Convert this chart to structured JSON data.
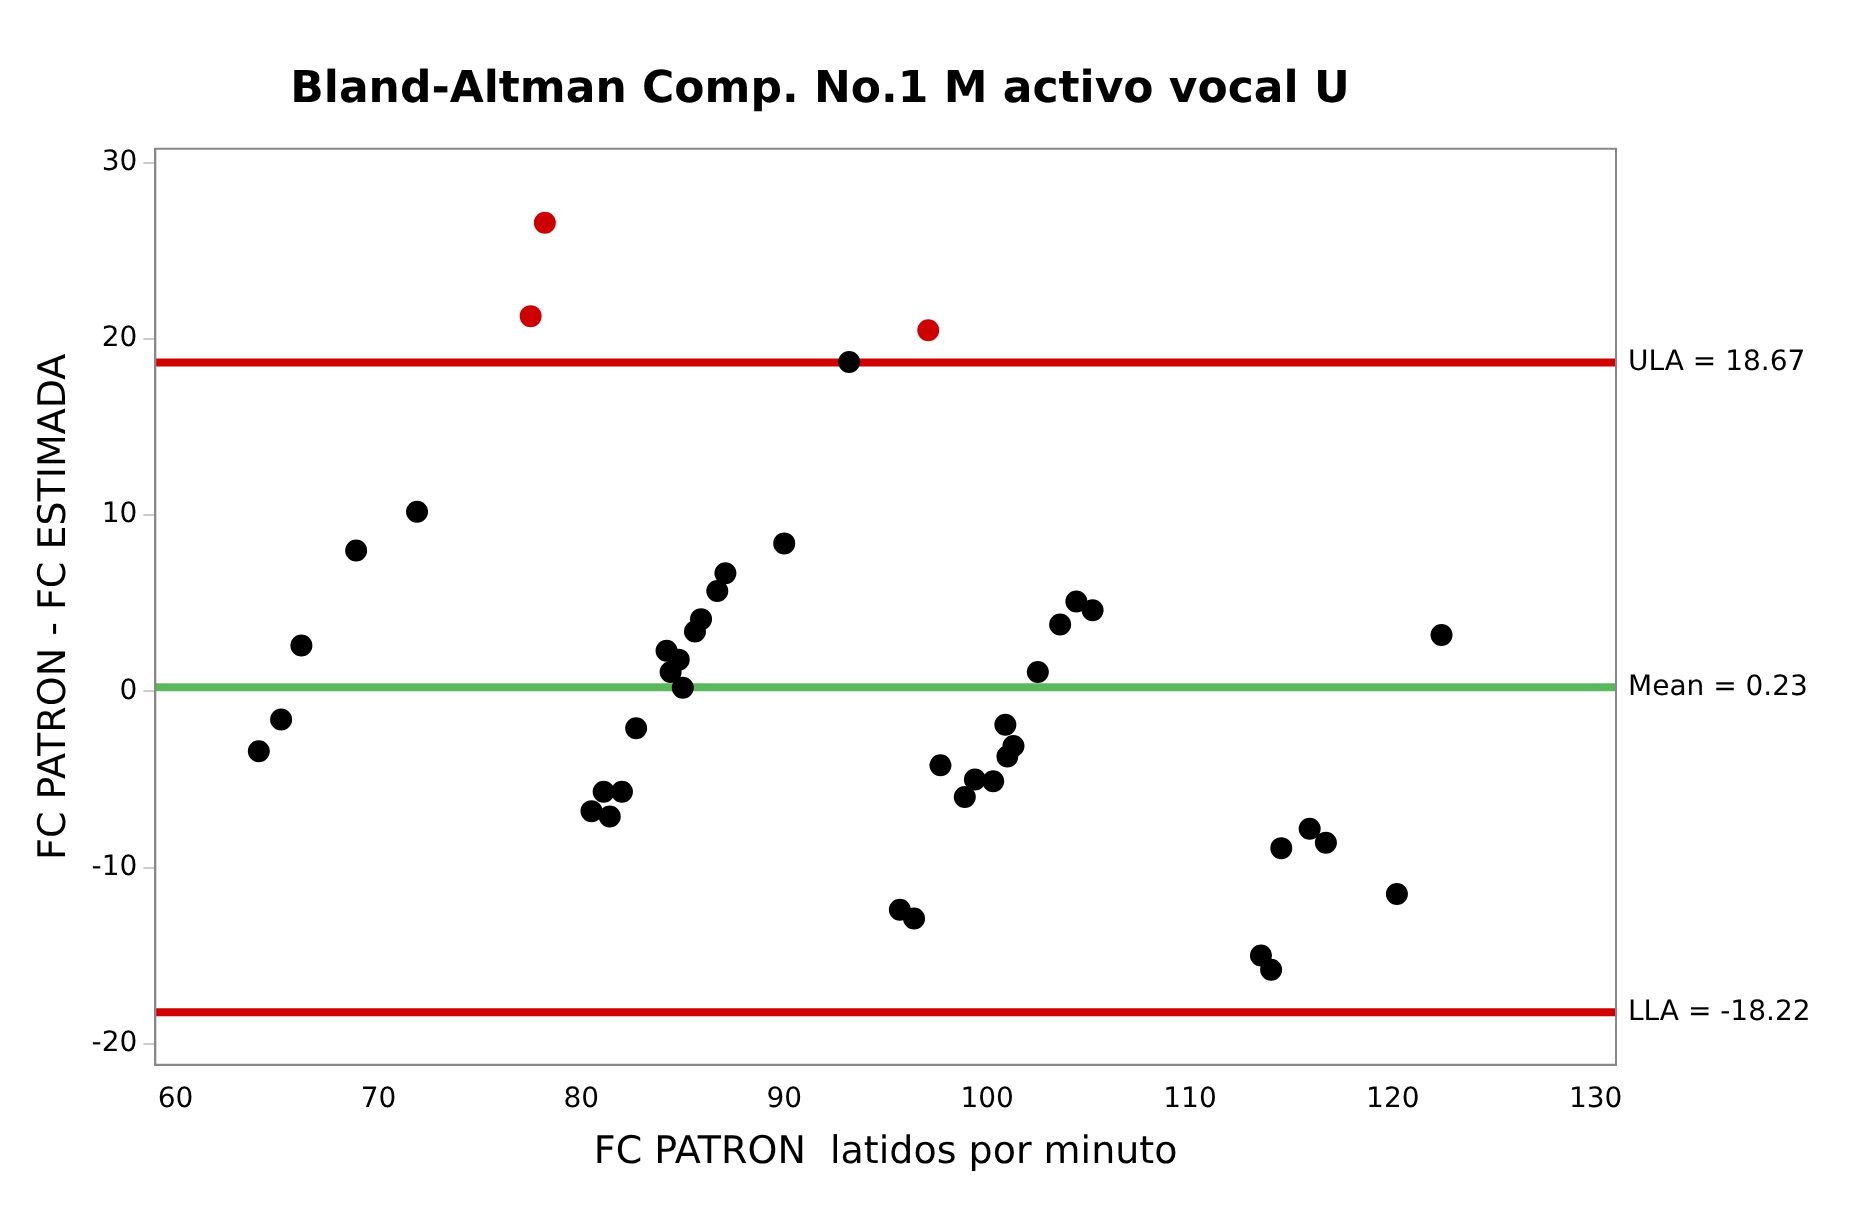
{
  "chart_data": {
    "type": "scatter",
    "title": "Bland-Altman Comp. No.1 M activo vocal U",
    "xlabel": "FC PATRON  latidos por minuto",
    "ylabel": "FC PATRON - FC ESTIMADA",
    "xlim": [
      59,
      131
    ],
    "xticks": [
      60,
      70,
      80,
      90,
      100,
      110,
      120,
      130
    ],
    "ylim": [
      -21.2,
      30.8
    ],
    "yticks": [
      -20,
      -10,
      0,
      10,
      20,
      30
    ],
    "grid": false,
    "marker": "circle",
    "series": [
      {
        "color": "#000000",
        "x": [
          64.1,
          65.2,
          66.2,
          68.9,
          71.9,
          93.2,
          80.5,
          81.1,
          81.4,
          82.0,
          82.7,
          84.2,
          84.4,
          84.8,
          85.0,
          85.6,
          85.9,
          86.7,
          87.1,
          90.0,
          95.7,
          96.4,
          97.7,
          98.9,
          99.4,
          100.3,
          100.9,
          101.0,
          101.3,
          102.5,
          103.6,
          104.4,
          105.2,
          113.5,
          114.0,
          114.5,
          115.9,
          116.7,
          120.2,
          122.4
        ],
        "values": [
          -3.4,
          -1.6,
          2.6,
          8.0,
          10.2,
          18.7,
          -6.8,
          -5.7,
          -7.1,
          -5.7,
          -2.1,
          2.3,
          1.1,
          1.8,
          0.2,
          3.4,
          4.1,
          5.7,
          6.7,
          8.4,
          -12.4,
          -12.9,
          -4.2,
          -6.0,
          -5.0,
          -5.1,
          -1.9,
          -3.7,
          -3.1,
          1.1,
          3.8,
          5.1,
          4.6,
          -15.0,
          -15.8,
          -8.9,
          -7.8,
          -8.6,
          -11.5,
          3.2
        ]
      },
      {
        "color": "#cc0000",
        "x": [
          78.2,
          77.5,
          97.1
        ],
        "values": [
          26.6,
          21.3,
          20.5
        ]
      }
    ],
    "ref_lines": [
      {
        "axis": "y",
        "value": 18.67,
        "label": "ULA = 18.67",
        "color": "#d00000"
      },
      {
        "axis": "y",
        "value": 0.23,
        "label": "Mean = 0.23",
        "color": "#5cb85c"
      },
      {
        "axis": "y",
        "value": -18.22,
        "label": "LLA = -18.22",
        "color": "#d00000"
      }
    ]
  }
}
